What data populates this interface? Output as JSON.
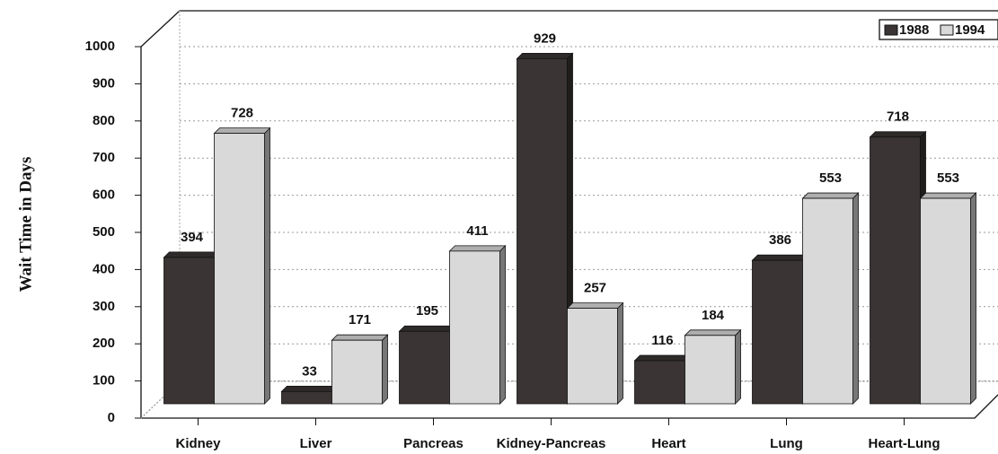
{
  "chart_data": {
    "type": "bar3d",
    "y_label": "Wait Time in Days",
    "categories": [
      "Kidney",
      "Liver",
      "Pancreas",
      "Kidney-Pancreas",
      "Heart",
      "Lung",
      "Heart-Lung"
    ],
    "series": [
      {
        "name": "1988",
        "color": "#3a3434",
        "values": [
          394,
          33,
          195,
          929,
          116,
          386,
          718
        ]
      },
      {
        "name": "1994",
        "color": "#d9d9d9",
        "values": [
          728,
          171,
          411,
          257,
          184,
          553,
          553
        ]
      }
    ],
    "ylim": [
      0,
      1000
    ],
    "yticks": [
      0,
      100,
      200,
      300,
      400,
      500,
      600,
      700,
      800,
      900,
      1000
    ],
    "grid": true,
    "legend": "top-right"
  }
}
